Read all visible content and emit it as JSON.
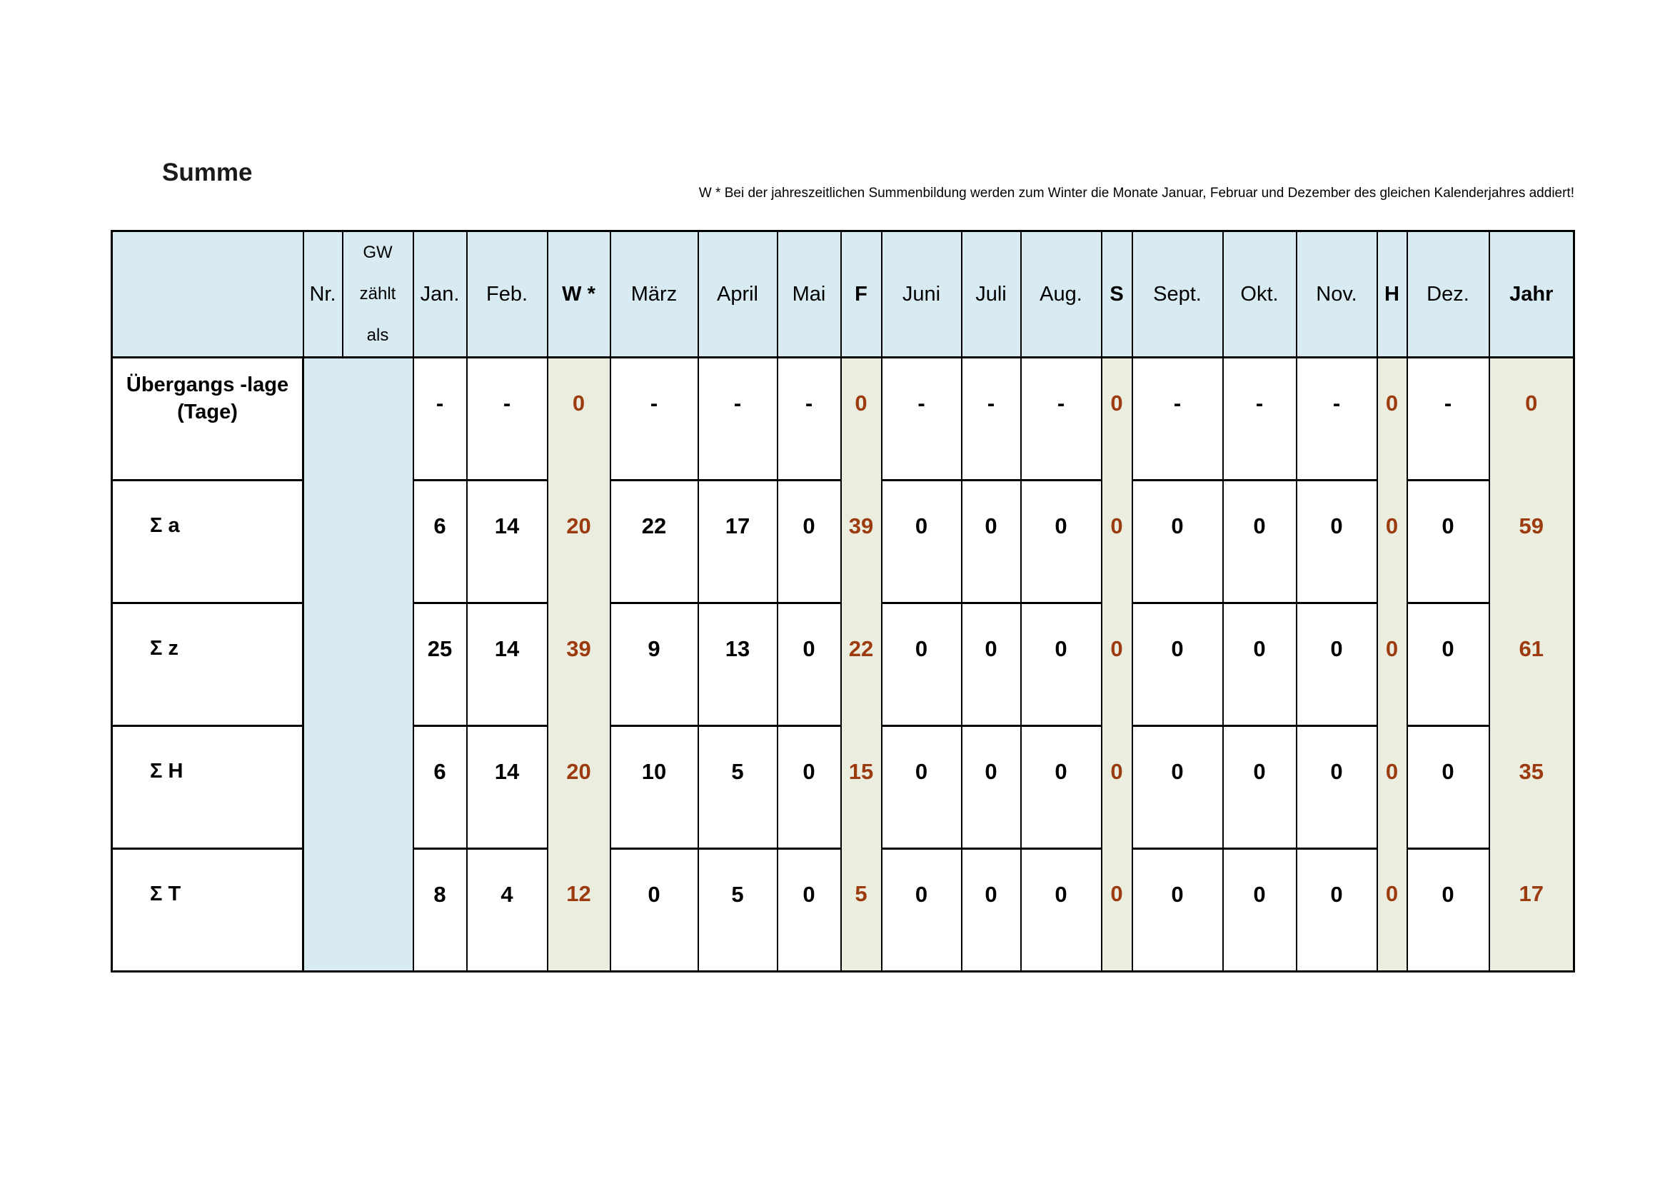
{
  "page": {
    "title": "Summe",
    "note": "W *   Bei der jahreszeitlichen  Summenbildung werden  zum Winter  die Monate Januar,  Februar und Dezember des gleichen Kalenderjahres  addiert!"
  },
  "colors": {
    "header_bg": "#d8eaf2",
    "season_bg": "#ebeede",
    "season_text": "#9c3a10",
    "border": "#000000",
    "text": "#000000"
  },
  "table": {
    "columns": [
      {
        "key": "label",
        "label": ""
      },
      {
        "key": "nr",
        "label": "Nr."
      },
      {
        "key": "gw",
        "label": "GW\nzählt\nals"
      },
      {
        "key": "jan",
        "label": "Jan."
      },
      {
        "key": "feb",
        "label": "Feb."
      },
      {
        "key": "w",
        "label": "W *",
        "season": true
      },
      {
        "key": "maerz",
        "label": "März"
      },
      {
        "key": "april",
        "label": "April"
      },
      {
        "key": "mai",
        "label": "Mai"
      },
      {
        "key": "f",
        "label": "F",
        "season": true
      },
      {
        "key": "juni",
        "label": "Juni"
      },
      {
        "key": "juli",
        "label": "Juli"
      },
      {
        "key": "aug",
        "label": "Aug."
      },
      {
        "key": "s",
        "label": "S",
        "season": true
      },
      {
        "key": "sept",
        "label": "Sept."
      },
      {
        "key": "okt",
        "label": "Okt."
      },
      {
        "key": "nov",
        "label": "Nov."
      },
      {
        "key": "h",
        "label": "H",
        "season": true
      },
      {
        "key": "dez",
        "label": "Dez."
      },
      {
        "key": "jahr",
        "label": "Jahr",
        "season": true
      }
    ],
    "rows": [
      {
        "label": "Übergangs -lage\n(Tage)",
        "values": [
          "-",
          "-",
          "0",
          "-",
          "-",
          "-",
          "0",
          "-",
          "-",
          "-",
          "0",
          "-",
          "-",
          "-",
          "0",
          "-",
          "0"
        ]
      },
      {
        "label": "Σ a",
        "values": [
          "6",
          "14",
          "20",
          "22",
          "17",
          "0",
          "39",
          "0",
          "0",
          "0",
          "0",
          "0",
          "0",
          "0",
          "0",
          "0",
          "59"
        ]
      },
      {
        "label": "Σ z",
        "values": [
          "25",
          "14",
          "39",
          "9",
          "13",
          "0",
          "22",
          "0",
          "0",
          "0",
          "0",
          "0",
          "0",
          "0",
          "0",
          "0",
          "61"
        ]
      },
      {
        "label": "Σ H",
        "values": [
          "6",
          "14",
          "20",
          "10",
          "5",
          "0",
          "15",
          "0",
          "0",
          "0",
          "0",
          "0",
          "0",
          "0",
          "0",
          "0",
          "35"
        ]
      },
      {
        "label": "Σ T",
        "values": [
          "8",
          "4",
          "12",
          "0",
          "5",
          "0",
          "5",
          "0",
          "0",
          "0",
          "0",
          "0",
          "0",
          "0",
          "0",
          "0",
          "17"
        ]
      }
    ]
  }
}
